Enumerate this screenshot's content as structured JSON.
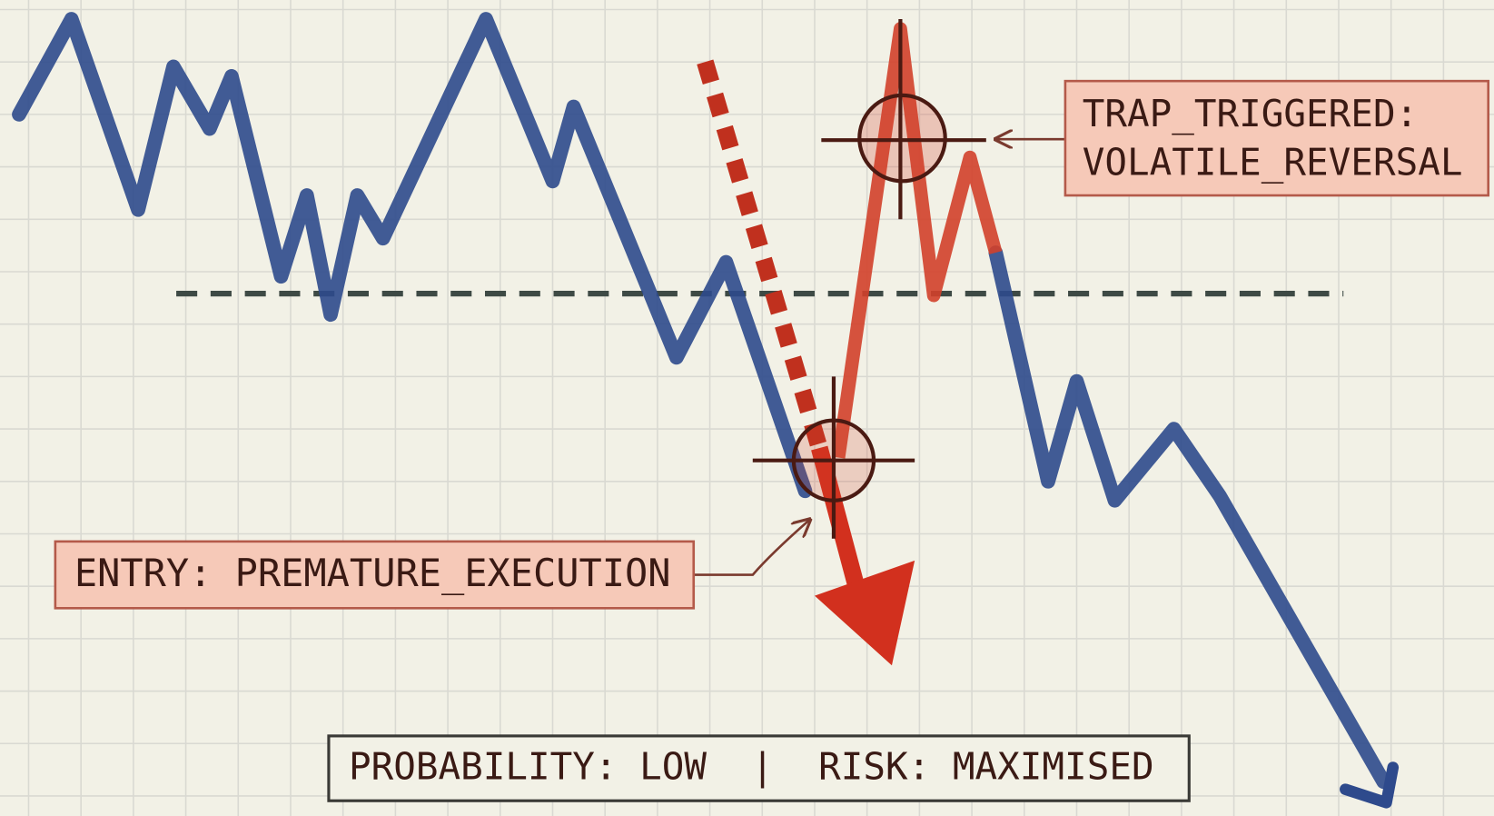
{
  "labels": {
    "entry": "ENTRY: PREMATURE_EXECUTION",
    "trap": [
      "TRAP_TRIGGERED:",
      "VOLATILE_REVERSAL"
    ],
    "footer": "PROBABILITY: LOW  |  RISK: MAXIMISED"
  }
}
